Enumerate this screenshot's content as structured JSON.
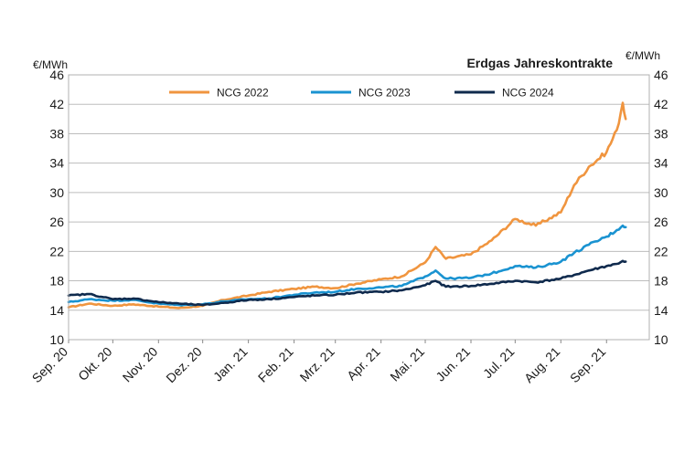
{
  "chart_data": {
    "type": "line",
    "title": "Erdgas Jahreskontrakte",
    "ylabel_left": "€/MWh",
    "ylabel_right": "€/MWh",
    "ylim": [
      10,
      46
    ],
    "yticks": [
      10,
      14,
      18,
      22,
      26,
      30,
      34,
      38,
      42,
      46
    ],
    "xlim": [
      "2020-09-01",
      "2021-09-30"
    ],
    "x_tick_labels": [
      "Sep. 20",
      "Okt. 20",
      "Nov. 20",
      "Dez. 20",
      "Jan. 21",
      "Feb. 21",
      "Mrz. 21",
      "Apr. 21",
      "Mai. 21",
      "Jun. 21",
      "Jul. 21",
      "Aug. 21",
      "Sep. 21"
    ],
    "grid": "horizontal",
    "legend_position": "top",
    "x": [
      "2020-09-01",
      "2020-09-15",
      "2020-10-01",
      "2020-10-15",
      "2020-11-01",
      "2020-11-15",
      "2020-12-01",
      "2020-12-15",
      "2021-01-01",
      "2021-01-15",
      "2021-02-01",
      "2021-02-15",
      "2021-03-01",
      "2021-03-15",
      "2021-04-01",
      "2021-04-15",
      "2021-05-01",
      "2021-05-08",
      "2021-05-15",
      "2021-06-01",
      "2021-06-15",
      "2021-07-01",
      "2021-07-15",
      "2021-08-01",
      "2021-08-10",
      "2021-08-20",
      "2021-09-01",
      "2021-09-08",
      "2021-09-12",
      "2021-09-14"
    ],
    "series": [
      {
        "name": "NCG 2022",
        "color": "#f0953f",
        "values": [
          14.4,
          14.9,
          14.6,
          14.8,
          14.5,
          14.3,
          14.6,
          15.4,
          16.0,
          16.5,
          16.9,
          17.2,
          17.0,
          17.6,
          18.2,
          18.6,
          20.5,
          22.6,
          21.0,
          21.6,
          23.5,
          26.4,
          25.5,
          27.3,
          31.0,
          33.5,
          35.5,
          38.5,
          42.2,
          40.0
        ]
      },
      {
        "name": "NCG 2023",
        "color": "#1a93d1",
        "values": [
          15.1,
          15.5,
          15.3,
          15.4,
          14.9,
          14.7,
          14.8,
          15.2,
          15.5,
          15.6,
          16.1,
          16.4,
          16.5,
          16.9,
          17.1,
          17.3,
          18.6,
          19.4,
          18.3,
          18.4,
          19.0,
          20.0,
          19.8,
          20.6,
          21.8,
          22.9,
          24.0,
          24.9,
          25.5,
          25.3
        ]
      },
      {
        "name": "NCG 2024",
        "color": "#0f2a4d",
        "values": [
          16.0,
          16.2,
          15.5,
          15.6,
          15.1,
          14.9,
          14.7,
          15.0,
          15.4,
          15.5,
          15.8,
          16.0,
          16.1,
          16.4,
          16.5,
          16.7,
          17.4,
          18.0,
          17.2,
          17.3,
          17.6,
          18.0,
          17.8,
          18.3,
          18.8,
          19.4,
          20.0,
          20.3,
          20.7,
          20.6
        ]
      }
    ]
  }
}
